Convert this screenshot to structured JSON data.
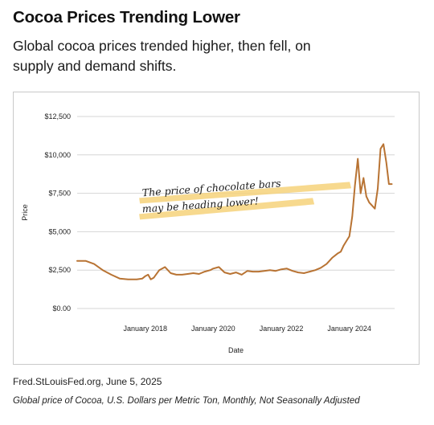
{
  "header": {
    "title": "Cocoa Prices Trending Lower",
    "subtitle": "Global cocoa prices trended higher, then fell, on supply and demand shifts."
  },
  "footer": {
    "source": "Fred.StLouisFed.org, June 5, 2025",
    "caption": "Global price of Cocoa, U.S. Dollars per Metric Ton, Monthly, Not Seasonally Adjusted"
  },
  "colors": {
    "line": "#b87333",
    "highlight": "#f6d27a",
    "grid": "#d6d6d6"
  },
  "chart_data": {
    "type": "line",
    "title": "Cocoa Prices Trending Lower",
    "xlabel": "Date",
    "ylabel": "Price",
    "grid": true,
    "xlim": [
      "2016-01-01",
      "2025-05-01"
    ],
    "ylim": [
      0,
      12500
    ],
    "y_ticks": [
      {
        "value": 0,
        "label": "$0.00"
      },
      {
        "value": 2500,
        "label": "$2,500"
      },
      {
        "value": 5000,
        "label": "$5,000"
      },
      {
        "value": 7500,
        "label": "$7,500"
      },
      {
        "value": 10000,
        "label": "$10,000"
      },
      {
        "value": 12500,
        "label": "$12,500"
      }
    ],
    "x_ticks": [
      {
        "value": "2018-01-01",
        "label": "January 2018"
      },
      {
        "value": "2020-01-01",
        "label": "January 2020"
      },
      {
        "value": "2022-01-01",
        "label": "January 2022"
      },
      {
        "value": "2024-01-01",
        "label": "January 2024"
      }
    ],
    "annotation": {
      "lines": [
        "The price of chocolate bars",
        "may be heading lower!"
      ],
      "date": "2017-12-01",
      "value": 7300
    },
    "series": [
      {
        "points": [
          [
            "2016-01-01",
            3100
          ],
          [
            "2016-04-01",
            3100
          ],
          [
            "2016-07-01",
            2900
          ],
          [
            "2016-10-01",
            2500
          ],
          [
            "2017-01-01",
            2200
          ],
          [
            "2017-04-01",
            1950
          ],
          [
            "2017-07-01",
            1900
          ],
          [
            "2017-10-01",
            1900
          ],
          [
            "2017-12-01",
            1950
          ],
          [
            "2018-01-01",
            2100
          ],
          [
            "2018-02-01",
            2200
          ],
          [
            "2018-03-01",
            1900
          ],
          [
            "2018-04-01",
            2000
          ],
          [
            "2018-06-01",
            2500
          ],
          [
            "2018-08-01",
            2700
          ],
          [
            "2018-10-01",
            2300
          ],
          [
            "2018-12-01",
            2200
          ],
          [
            "2019-02-01",
            2200
          ],
          [
            "2019-04-01",
            2250
          ],
          [
            "2019-06-01",
            2300
          ],
          [
            "2019-08-01",
            2250
          ],
          [
            "2019-10-01",
            2400
          ],
          [
            "2019-12-01",
            2500
          ],
          [
            "2020-01-01",
            2600
          ],
          [
            "2020-03-01",
            2700
          ],
          [
            "2020-05-01",
            2350
          ],
          [
            "2020-07-01",
            2250
          ],
          [
            "2020-09-01",
            2350
          ],
          [
            "2020-11-01",
            2200
          ],
          [
            "2021-01-01",
            2450
          ],
          [
            "2021-03-01",
            2400
          ],
          [
            "2021-05-01",
            2400
          ],
          [
            "2021-07-01",
            2450
          ],
          [
            "2021-09-01",
            2500
          ],
          [
            "2021-11-01",
            2450
          ],
          [
            "2022-01-01",
            2550
          ],
          [
            "2022-03-01",
            2600
          ],
          [
            "2022-05-01",
            2450
          ],
          [
            "2022-07-01",
            2350
          ],
          [
            "2022-09-01",
            2300
          ],
          [
            "2022-11-01",
            2400
          ],
          [
            "2023-01-01",
            2500
          ],
          [
            "2023-03-01",
            2650
          ],
          [
            "2023-05-01",
            2900
          ],
          [
            "2023-07-01",
            3300
          ],
          [
            "2023-09-01",
            3600
          ],
          [
            "2023-10-01",
            3700
          ],
          [
            "2023-11-01",
            4100
          ],
          [
            "2023-12-01",
            4400
          ],
          [
            "2024-01-01",
            4700
          ],
          [
            "2024-02-01",
            6000
          ],
          [
            "2024-03-01",
            8000
          ],
          [
            "2024-04-01",
            9750
          ],
          [
            "2024-05-01",
            7500
          ],
          [
            "2024-06-01",
            8500
          ],
          [
            "2024-07-01",
            7300
          ],
          [
            "2024-08-01",
            6900
          ],
          [
            "2024-09-01",
            6700
          ],
          [
            "2024-10-01",
            6500
          ],
          [
            "2024-11-01",
            7800
          ],
          [
            "2024-12-01",
            10400
          ],
          [
            "2025-01-01",
            10700
          ],
          [
            "2025-02-01",
            9500
          ],
          [
            "2025-03-01",
            8100
          ],
          [
            "2025-04-01",
            8100
          ]
        ]
      }
    ]
  }
}
